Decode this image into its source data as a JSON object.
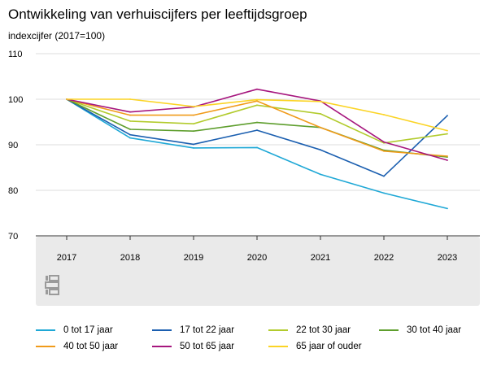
{
  "header": {
    "title": "Ontwikkeling van verhuiscijfers per leeftijdsgroep",
    "subtitle": "indexcijfer (2017=100)"
  },
  "logo": {
    "text": "cbs"
  },
  "chart_data": {
    "type": "line",
    "title": "Ontwikkeling van verhuiscijfers per leeftijdsgroep",
    "subtitle": "indexcijfer (2017=100)",
    "xlabel": "",
    "ylabel": "",
    "categories": [
      "2017",
      "2018",
      "2019",
      "2020",
      "2021",
      "2022",
      "2023"
    ],
    "ylim": [
      70,
      110
    ],
    "yticks": [
      "70",
      "80",
      "90",
      "100",
      "110"
    ],
    "grid": true,
    "legend_position": "bottom",
    "series": [
      {
        "name": "0 tot 17 jaar",
        "color": "#1fa8d6",
        "values": [
          100,
          91.5,
          89.3,
          89.4,
          83.5,
          79.4,
          76.0
        ]
      },
      {
        "name": "17 tot 22 jaar",
        "color": "#1b5fb0",
        "values": [
          100,
          92.2,
          90.1,
          93.2,
          88.9,
          83.1,
          96.4
        ]
      },
      {
        "name": "22 tot 30 jaar",
        "color": "#b2cb2d",
        "values": [
          100,
          95.2,
          94.6,
          98.7,
          96.8,
          90.4,
          92.4
        ]
      },
      {
        "name": "30 tot 40 jaar",
        "color": "#5e9e2d",
        "values": [
          100,
          93.4,
          93.0,
          94.9,
          93.8,
          88.8,
          87.3
        ]
      },
      {
        "name": "40 tot 50 jaar",
        "color": "#f09b1a",
        "values": [
          100,
          96.5,
          96.5,
          99.6,
          93.8,
          88.6,
          87.5
        ]
      },
      {
        "name": "50 tot 65 jaar",
        "color": "#a6167e",
        "values": [
          100,
          97.2,
          98.3,
          102.2,
          99.6,
          90.6,
          86.6
        ]
      },
      {
        "name": "65 jaar of ouder",
        "color": "#fbd425",
        "values": [
          100,
          100.0,
          98.4,
          99.9,
          99.5,
          96.6,
          93.1
        ]
      }
    ]
  }
}
